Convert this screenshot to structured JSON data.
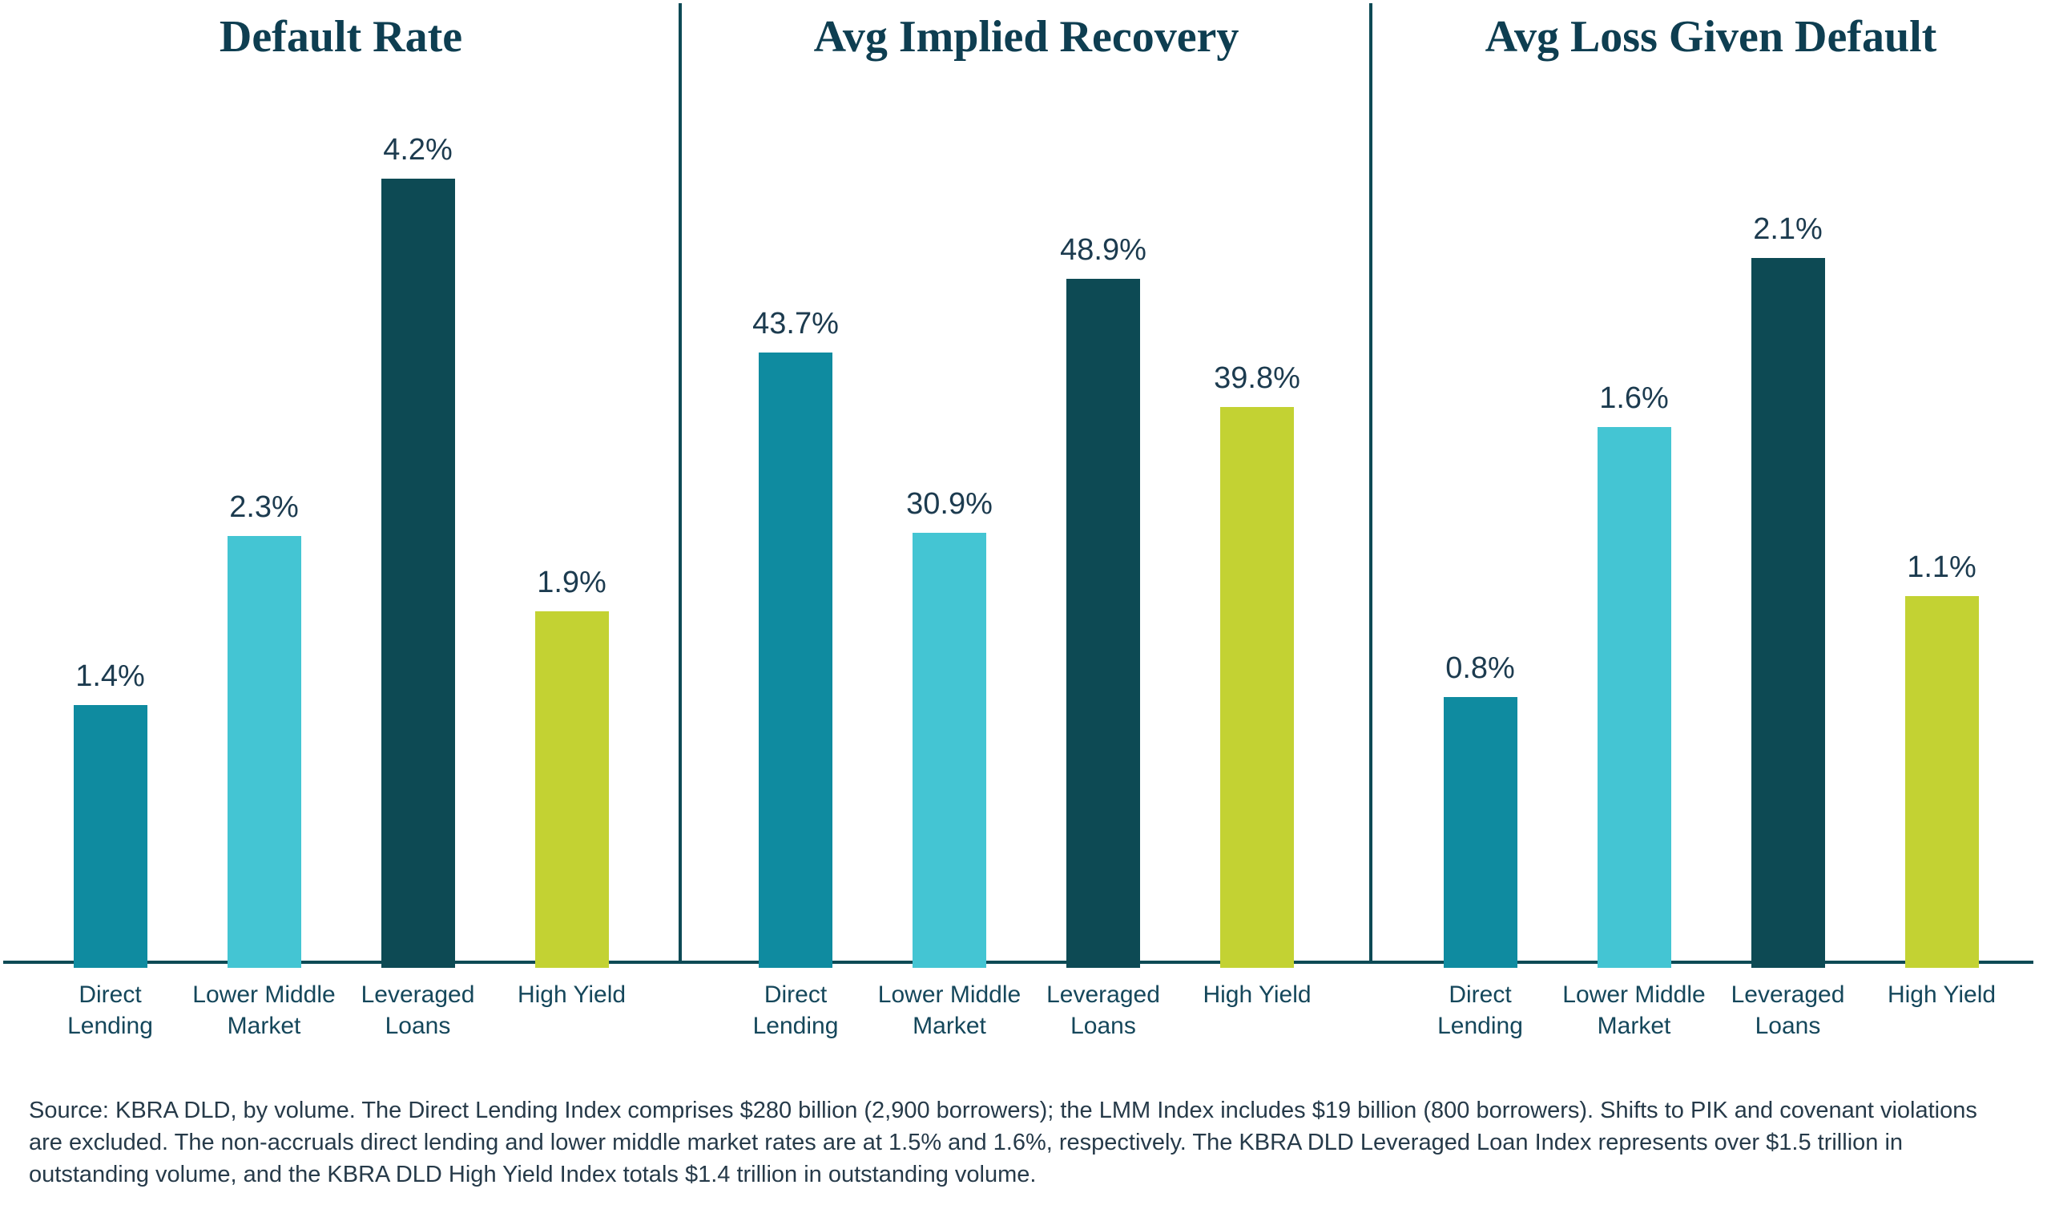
{
  "chart_data": [
    {
      "type": "bar",
      "title": "Default Rate",
      "categories": [
        "Direct Lending",
        "Lower Middle Market",
        "Leveraged Loans",
        "High Yield"
      ],
      "values": [
        1.4,
        2.3,
        4.2,
        1.9
      ],
      "value_labels": [
        "1.4%",
        "2.3%",
        "4.2%",
        "1.9%"
      ],
      "unit": "%",
      "ylim": [
        0,
        4.5
      ],
      "grid": false,
      "legend": "none"
    },
    {
      "type": "bar",
      "title": "Avg Implied Recovery",
      "categories": [
        "Direct Lending",
        "Lower Middle Market",
        "Leveraged Loans",
        "High Yield"
      ],
      "values": [
        43.7,
        30.9,
        48.9,
        39.8
      ],
      "value_labels": [
        "43.7%",
        "30.9%",
        "48.9%",
        "39.8%"
      ],
      "unit": "%",
      "ylim": [
        0,
        60
      ],
      "grid": false,
      "legend": "none"
    },
    {
      "type": "bar",
      "title": "Avg Loss Given Default",
      "categories": [
        "Direct Lending",
        "Lower Middle Market",
        "Leveraged Loans",
        "High Yield"
      ],
      "values": [
        0.8,
        1.6,
        2.1,
        1.1
      ],
      "value_labels": [
        "0.8%",
        "1.6%",
        "2.1%",
        "1.1%"
      ],
      "unit": "%",
      "ylim": [
        0,
        2.5
      ],
      "grid": false,
      "legend": "none"
    }
  ],
  "colors": {
    "series": [
      "#0F8BA0",
      "#44C5D3",
      "#0D4A54",
      "#C3D233"
    ],
    "title": "#0E3E51",
    "axis": "#0D4A55",
    "value_label": "#1C3B4F",
    "category_label": "#15475B",
    "source": "#263A49"
  },
  "source_note": "Source: KBRA DLD, by volume. The Direct Lending Index comprises $280 billion (2,900 borrowers); the LMM Index includes $19 billion (800 borrowers). Shifts to PIK and covenant violations are excluded. The non-accruals direct lending and lower middle market rates are at 1.5% and 1.6%, respectively. The KBRA DLD Leveraged Loan Index represents over $1.5 trillion in outstanding volume, and the KBRA DLD High Yield Index totals $1.4 trillion in outstanding volume."
}
